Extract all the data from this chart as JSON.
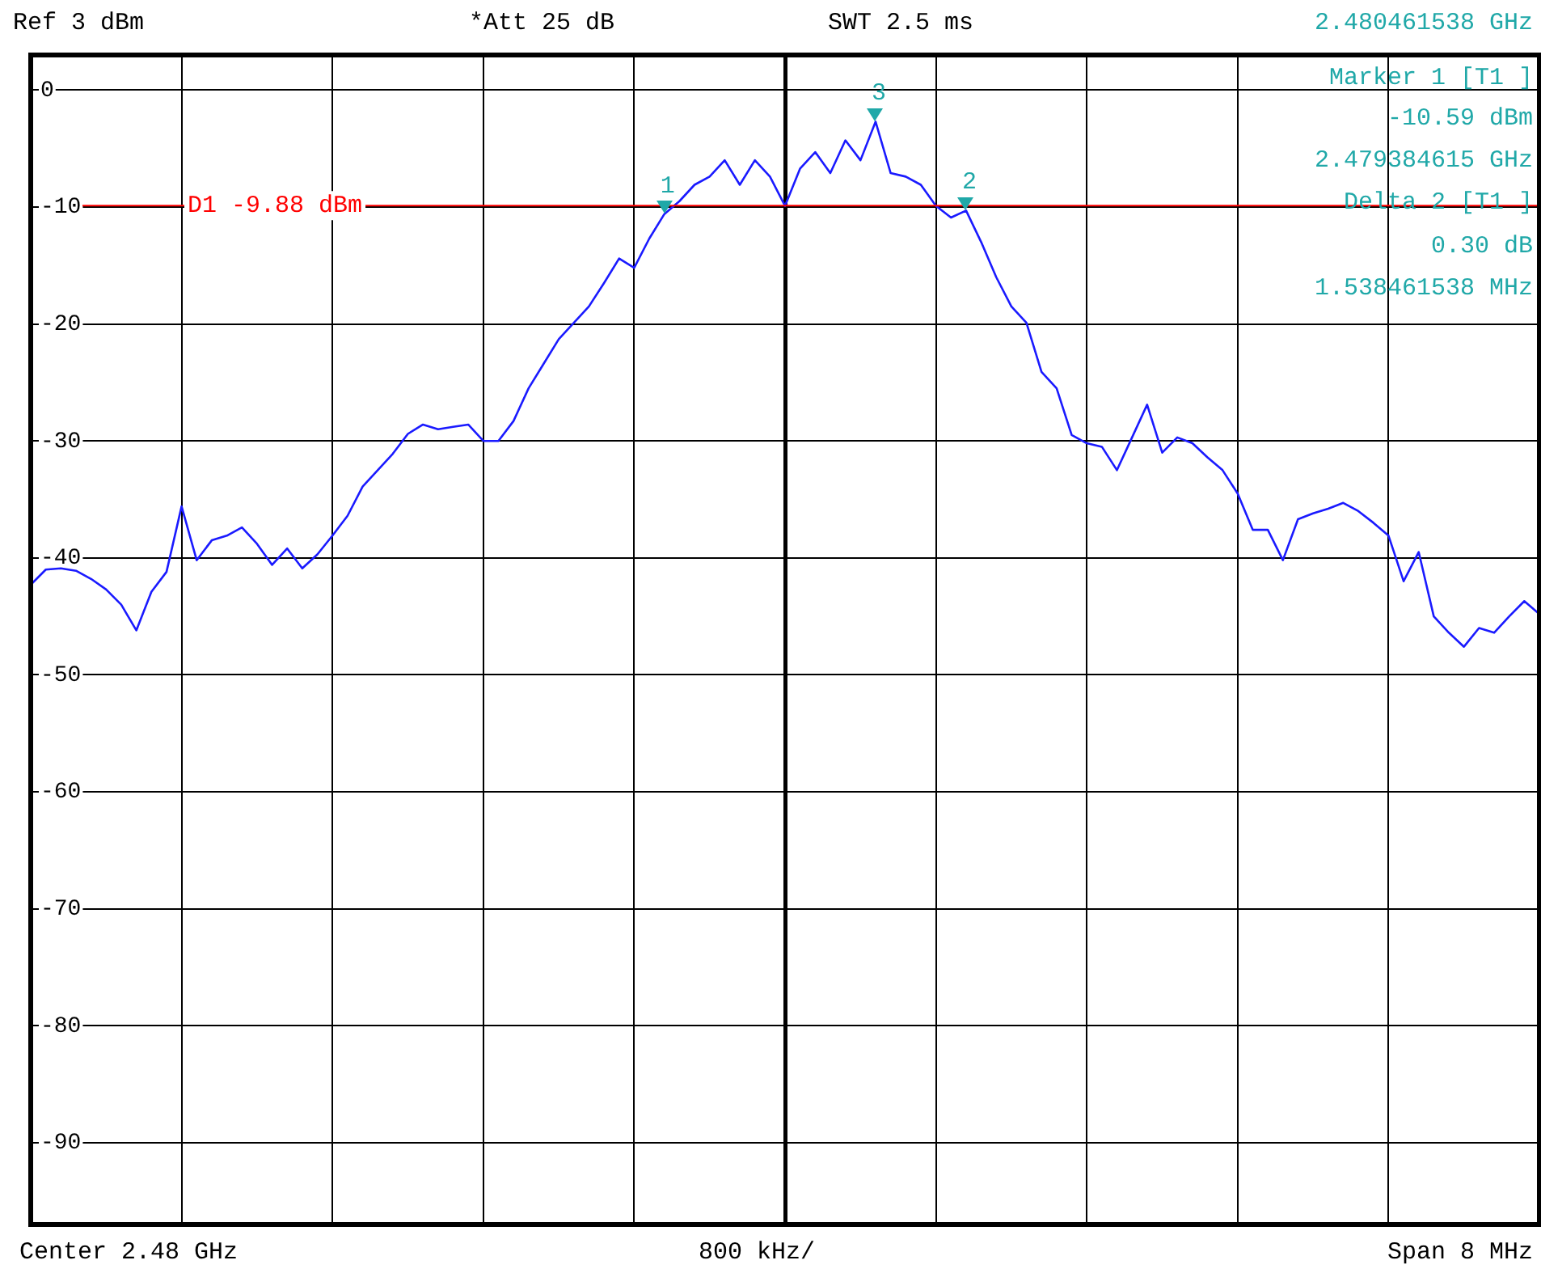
{
  "chart_data": {
    "type": "line",
    "ylim": [
      -97,
      3
    ],
    "categories": [
      null,
      null,
      null,
      null,
      null,
      null,
      null,
      null,
      null,
      null,
      null,
      null,
      null,
      null,
      null,
      null,
      null,
      null,
      null,
      null,
      null,
      null,
      null,
      null,
      null,
      null,
      null,
      null,
      null,
      null,
      null,
      null,
      null,
      null,
      null,
      null,
      null,
      null,
      null,
      null,
      null,
      null,
      null,
      null,
      null,
      null,
      null,
      null,
      null,
      null,
      null,
      null,
      null,
      null,
      null,
      null,
      null,
      null,
      null,
      null,
      null,
      null,
      null,
      null,
      null,
      null,
      null,
      null,
      null,
      null,
      null,
      null,
      null,
      null,
      null,
      null,
      null,
      null,
      null,
      null,
      null,
      null,
      null,
      null,
      null,
      null,
      null,
      null,
      null,
      null,
      null,
      null,
      null,
      null,
      null,
      null,
      null,
      null,
      null,
      null,
      null
    ],
    "yticks": [
      0,
      -10,
      -20,
      -30,
      -40,
      -50,
      -60,
      -70,
      -80,
      -90
    ],
    "tick_labels": "y",
    "grid": true,
    "legend": false,
    "marker": "none",
    "line_style": "solid",
    "series": [
      {
        "color": "#1a1aff",
        "values": [
          -42.3,
          -41,
          -40.9,
          -41.1,
          -41.8,
          -42.7,
          -44,
          -46.2,
          -42.9,
          -41.2,
          -35.6,
          -40.2,
          -38.5,
          -38.1,
          -37.4,
          -38.8,
          -40.6,
          -39.2,
          -40.9,
          -39.7,
          -38.1,
          -36.4,
          -33.9,
          -32.5,
          -31.1,
          -29.4,
          -28.6,
          -29,
          -28.8,
          -28.6,
          -30,
          -30,
          -28.3,
          -25.5,
          -23.4,
          -21.3,
          -19.9,
          -18.5,
          -16.5,
          -14.4,
          -15.2,
          -12.7,
          -10.6,
          -9.5,
          -8.1,
          -7.4,
          -6,
          -8.1,
          -6,
          -7.4,
          -9.9,
          -6.7,
          -5.3,
          -7.1,
          -4.3,
          -6,
          -2.7,
          -7.1,
          -7.4,
          -8.1,
          -9.9,
          -10.9,
          -10.3,
          -13,
          -16,
          -18.5,
          -19.9,
          -24.1,
          -25.5,
          -29.5,
          -30.2,
          -30.5,
          -32.5,
          -29.7,
          -26.9,
          -31,
          -29.7,
          -30.2,
          -31.4,
          -32.5,
          -34.5,
          -37.6,
          -37.6,
          -40.2,
          -36.7,
          -36.2,
          -35.8,
          -35.3,
          -36,
          -37,
          -38.1,
          -42,
          -39.5,
          -45,
          -46.4,
          -47.6,
          -46,
          -46.4,
          -45,
          -43.7,
          -44.8
        ]
      }
    ],
    "ref_lines": [
      {
        "axis": "y",
        "value": -9.88,
        "label": "D1 -9.88 dBm",
        "color": "#ff0000"
      }
    ],
    "annotations": [
      "Ref 3 dBm",
      "*Att 25 dB",
      "SWT 2.5 ms",
      "2.480461538 GHz",
      "Marker 1 [T1 ]",
      "-10.59 dBm",
      "2.479384615 GHz",
      "Delta 2 [T1 ]",
      "0.30 dB",
      "1.538461538 MHz",
      "Center 2.48 GHz",
      "800 kHz/",
      "Span 8 MHz",
      {
        "text": "1",
        "y": -10.6
      },
      {
        "text": "2",
        "y": -10.3
      },
      {
        "text": "3",
        "y": -2.7
      }
    ]
  }
}
